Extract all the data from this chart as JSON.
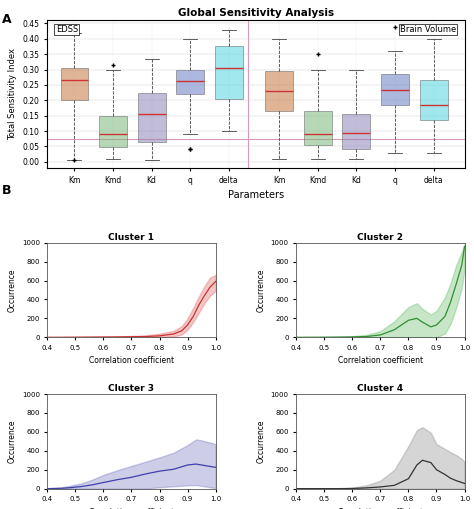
{
  "title_A": "Global Sensitivity Analysis",
  "xlabel_A": "Parameters",
  "ylabel_A": "Total Sensitivity Index",
  "params": [
    "Km",
    "Kmd",
    "Kd",
    "q",
    "delta"
  ],
  "label_EDSS": "EDSS",
  "label_BV": "Brain Volume",
  "hline_y": 0.075,
  "hline_color": "#d899b8",
  "vline_color": "#d899b8",
  "vline_x": 5.5,
  "ylim_A": [
    -0.02,
    0.46
  ],
  "yticks_A": [
    0.0,
    0.05,
    0.1,
    0.15,
    0.2,
    0.25,
    0.3,
    0.35,
    0.4,
    0.45
  ],
  "box_data": {
    "EDSS": {
      "Km": {
        "med": 0.265,
        "q1": 0.2,
        "q3": 0.305,
        "whislo": 0.005,
        "whishi": 0.42,
        "fliers_lo": [
          0.005
        ],
        "fliers_hi": []
      },
      "Kmd": {
        "med": 0.09,
        "q1": 0.048,
        "q3": 0.15,
        "whislo": 0.01,
        "whishi": 0.3,
        "fliers_lo": [],
        "fliers_hi": [
          0.315
        ]
      },
      "Kd": {
        "med": 0.155,
        "q1": 0.065,
        "q3": 0.225,
        "whislo": 0.005,
        "whishi": 0.335,
        "fliers_lo": [],
        "fliers_hi": []
      },
      "q": {
        "med": 0.262,
        "q1": 0.22,
        "q3": 0.3,
        "whislo": 0.09,
        "whishi": 0.4,
        "fliers_lo": [
          0.04,
          0.04
        ],
        "fliers_hi": []
      },
      "delta": {
        "med": 0.305,
        "q1": 0.205,
        "q3": 0.375,
        "whislo": 0.1,
        "whishi": 0.43,
        "fliers_lo": [],
        "fliers_hi": []
      }
    },
    "BV": {
      "Km": {
        "med": 0.23,
        "q1": 0.165,
        "q3": 0.295,
        "whislo": 0.01,
        "whishi": 0.4,
        "fliers_lo": [],
        "fliers_hi": []
      },
      "Kmd": {
        "med": 0.09,
        "q1": 0.055,
        "q3": 0.165,
        "whislo": 0.01,
        "whishi": 0.3,
        "fliers_lo": [],
        "fliers_hi": [
          0.35
        ]
      },
      "Kd": {
        "med": 0.095,
        "q1": 0.04,
        "q3": 0.155,
        "whislo": 0.01,
        "whishi": 0.3,
        "fliers_lo": [],
        "fliers_hi": []
      },
      "q": {
        "med": 0.235,
        "q1": 0.185,
        "q3": 0.285,
        "whislo": 0.03,
        "whishi": 0.36,
        "fliers_lo": [],
        "fliers_hi": [
          0.44
        ]
      },
      "delta": {
        "med": 0.185,
        "q1": 0.135,
        "q3": 0.265,
        "whislo": 0.03,
        "whishi": 0.4,
        "fliers_lo": [],
        "fliers_hi": []
      }
    }
  },
  "box_colors": {
    "Km": "#c87941",
    "Kmd": "#7db87a",
    "Kd": "#8f85b8",
    "q": "#6b7fc4",
    "delta": "#55d4e0"
  },
  "median_color": "#cc3333",
  "whisker_color": "#444444",
  "flier_color": "#cc3333",
  "clusters": [
    "Cluster 1",
    "Cluster 2",
    "Cluster 3",
    "Cluster 4"
  ],
  "cluster_colors": [
    "#e06060",
    "#60b860",
    "#7070bb",
    "#888888"
  ],
  "cluster_line_colors": [
    "#cc3030",
    "#309030",
    "#4040aa",
    "#333333"
  ],
  "cluster_fill_alpha": 0.35,
  "cc_xlim": [
    0.4,
    1.0
  ],
  "cc_ylim": [
    0,
    1000
  ],
  "cc_xlabel": "Correlation coefficient",
  "cc_ylabel": "Occurrence",
  "cc_yticks": [
    0,
    200,
    400,
    600,
    800,
    1000
  ],
  "cc_xticks": [
    0.4,
    0.5,
    0.6,
    0.7,
    0.8,
    0.9,
    1.0
  ],
  "cluster1_x": [
    0.4,
    0.5,
    0.55,
    0.6,
    0.65,
    0.7,
    0.75,
    0.8,
    0.85,
    0.88,
    0.9,
    0.92,
    0.94,
    0.96,
    0.98,
    1.0
  ],
  "cluster1_mid": [
    0,
    1,
    2,
    3,
    4,
    6,
    8,
    15,
    35,
    70,
    130,
    220,
    340,
    440,
    530,
    590
  ],
  "cluster1_lo": [
    0,
    0,
    0,
    0,
    0,
    0,
    0,
    2,
    8,
    30,
    80,
    160,
    260,
    360,
    440,
    490
  ],
  "cluster1_hi": [
    0,
    3,
    5,
    7,
    9,
    14,
    20,
    38,
    68,
    120,
    200,
    310,
    430,
    540,
    630,
    660
  ],
  "cluster2_x": [
    0.4,
    0.5,
    0.55,
    0.6,
    0.65,
    0.7,
    0.75,
    0.8,
    0.83,
    0.85,
    0.88,
    0.9,
    0.93,
    0.95,
    0.97,
    0.99,
    1.0
  ],
  "cluster2_mid": [
    0,
    1,
    2,
    4,
    8,
    25,
    80,
    180,
    200,
    160,
    110,
    130,
    220,
    370,
    560,
    760,
    960
  ],
  "cluster2_lo": [
    0,
    0,
    0,
    0,
    0,
    0,
    0,
    0,
    0,
    0,
    0,
    0,
    40,
    140,
    310,
    520,
    720
  ],
  "cluster2_hi": [
    0,
    3,
    6,
    12,
    25,
    65,
    170,
    320,
    360,
    300,
    240,
    280,
    420,
    570,
    760,
    900,
    985
  ],
  "cluster3_x": [
    0.4,
    0.45,
    0.48,
    0.52,
    0.56,
    0.6,
    0.65,
    0.7,
    0.75,
    0.8,
    0.85,
    0.9,
    0.93,
    0.95,
    0.97,
    0.99,
    1.0
  ],
  "cluster3_mid": [
    0,
    4,
    10,
    22,
    40,
    65,
    95,
    120,
    155,
    185,
    205,
    250,
    260,
    250,
    240,
    230,
    225
  ],
  "cluster3_lo": [
    0,
    0,
    0,
    0,
    0,
    0,
    0,
    0,
    0,
    15,
    25,
    35,
    38,
    30,
    20,
    10,
    5
  ],
  "cluster3_hi": [
    0,
    12,
    30,
    55,
    95,
    145,
    195,
    240,
    285,
    330,
    380,
    460,
    520,
    510,
    495,
    480,
    470
  ],
  "cluster4_x": [
    0.4,
    0.55,
    0.6,
    0.65,
    0.7,
    0.75,
    0.8,
    0.83,
    0.85,
    0.88,
    0.9,
    0.93,
    0.95,
    0.97,
    0.99,
    1.0
  ],
  "cluster4_mid": [
    0,
    0,
    2,
    8,
    18,
    35,
    105,
    250,
    300,
    275,
    200,
    150,
    110,
    85,
    65,
    55
  ],
  "cluster4_lo": [
    0,
    0,
    0,
    0,
    0,
    0,
    0,
    0,
    0,
    0,
    0,
    0,
    0,
    0,
    0,
    0
  ],
  "cluster4_hi": [
    0,
    0,
    10,
    35,
    85,
    200,
    450,
    620,
    650,
    590,
    470,
    420,
    385,
    355,
    315,
    285
  ]
}
